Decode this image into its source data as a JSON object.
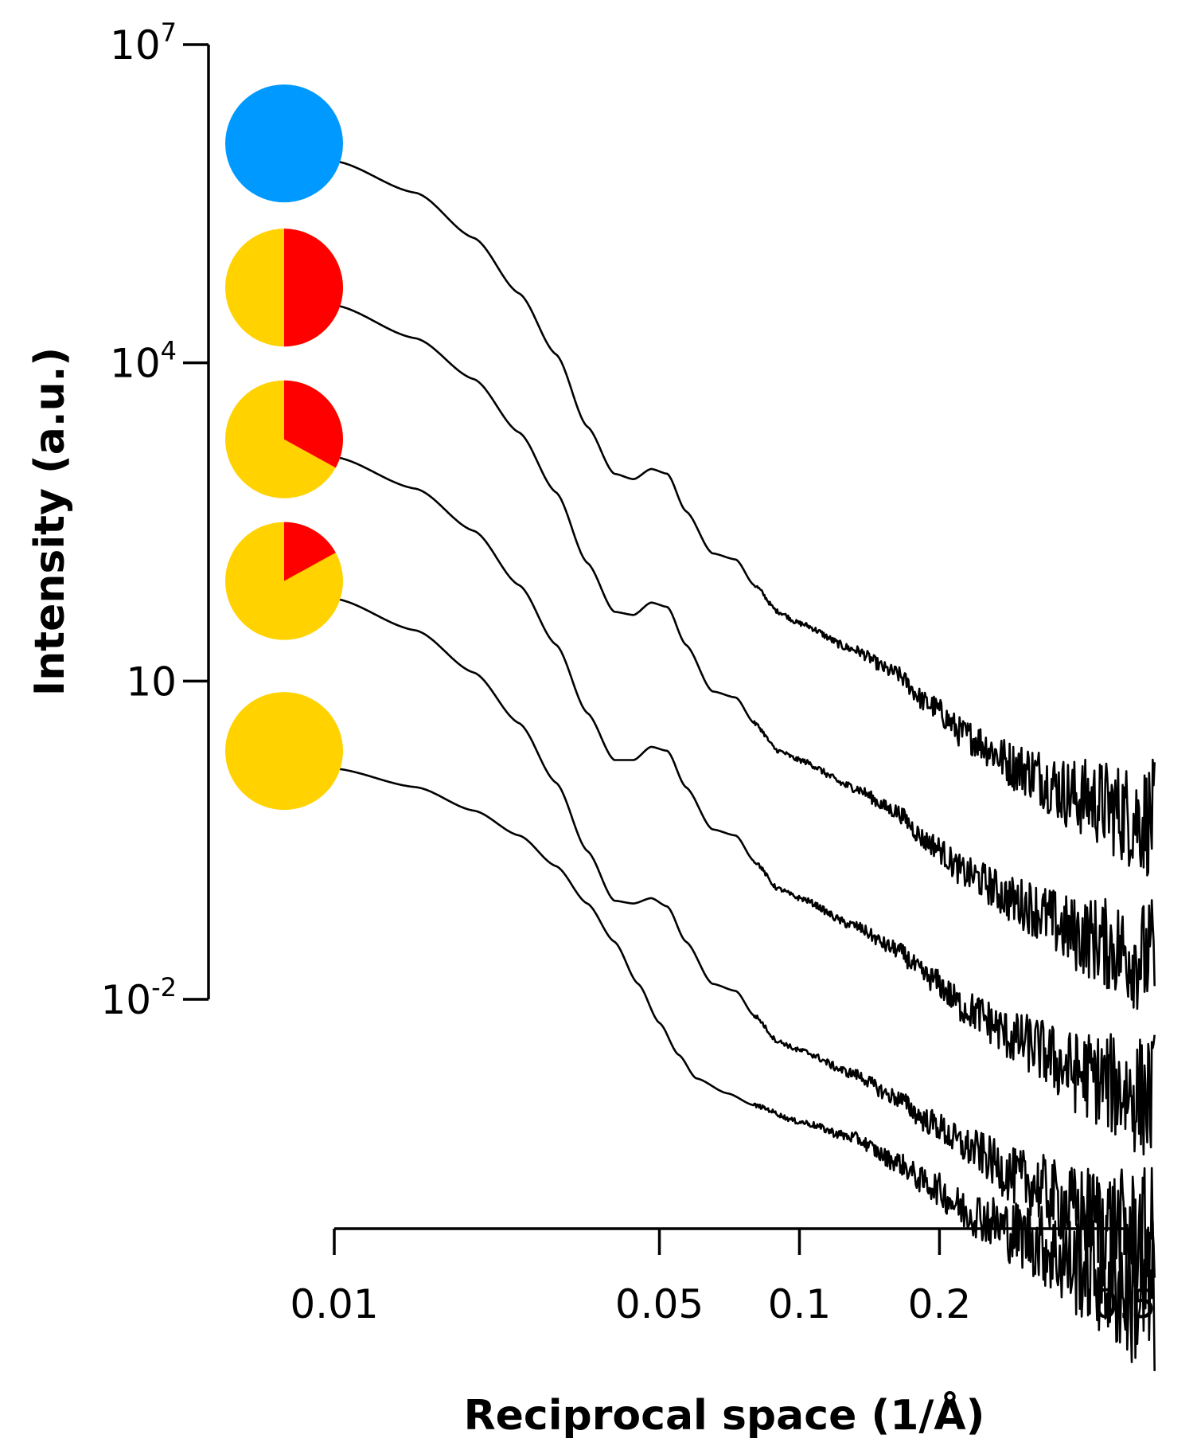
{
  "chart_data": {
    "type": "line",
    "xlabel": "Reciprocal space (1/Å)",
    "ylabel": "Intensity (a.u.)",
    "x_scale": "log",
    "y_scale": "log",
    "xlim": [
      0.0072,
      0.6
    ],
    "ylim": [
      1e-05,
      10000000
    ],
    "x_ticks": [
      {
        "value": 0.01,
        "label": "0.01"
      },
      {
        "value": 0.05,
        "label": "0.05"
      },
      {
        "value": 0.1,
        "label": "0.1"
      },
      {
        "value": 0.2,
        "label": "0.2"
      },
      {
        "value": 0.5,
        "label": "0.5"
      }
    ],
    "y_ticks": [
      {
        "value": 10000000,
        "base": "10",
        "exp": "7"
      },
      {
        "value": 10000,
        "base": "10",
        "exp": "4"
      },
      {
        "value": 10,
        "base": "10",
        "exp": ""
      },
      {
        "value": 0.01,
        "base": "10",
        "exp": "-2"
      }
    ],
    "series": [
      {
        "marker": {
          "red_fraction": 0,
          "colors": [
            "#0099ff"
          ]
        },
        "noise": 0.55,
        "points": [
          [
            0.01,
            800000
          ],
          [
            0.015,
            400000
          ],
          [
            0.02,
            150000
          ],
          [
            0.025,
            45000
          ],
          [
            0.03,
            12000
          ],
          [
            0.035,
            2500
          ],
          [
            0.04,
            900
          ],
          [
            0.044,
            800
          ],
          [
            0.048,
            1000
          ],
          [
            0.052,
            900
          ],
          [
            0.057,
            400
          ],
          [
            0.065,
            160
          ],
          [
            0.073,
            140
          ],
          [
            0.08,
            80
          ],
          [
            0.09,
            45
          ],
          [
            0.1,
            35
          ],
          [
            0.13,
            20
          ],
          [
            0.16,
            12
          ],
          [
            0.19,
            6
          ],
          [
            0.23,
            3
          ],
          [
            0.3,
            1.5
          ],
          [
            0.4,
            0.8
          ],
          [
            0.55,
            0.5
          ]
        ]
      },
      {
        "marker": {
          "red_fraction": 0.5,
          "colors": [
            "#ffd200",
            "#ff0000"
          ]
        },
        "noise": 0.55,
        "points": [
          [
            0.01,
            35000
          ],
          [
            0.015,
            17000
          ],
          [
            0.02,
            7000
          ],
          [
            0.025,
            2200
          ],
          [
            0.03,
            600
          ],
          [
            0.035,
            130
          ],
          [
            0.04,
            45
          ],
          [
            0.044,
            42
          ],
          [
            0.048,
            55
          ],
          [
            0.052,
            50
          ],
          [
            0.057,
            22
          ],
          [
            0.065,
            8
          ],
          [
            0.073,
            7
          ],
          [
            0.08,
            4
          ],
          [
            0.09,
            2.2
          ],
          [
            0.1,
            1.8
          ],
          [
            0.13,
            1
          ],
          [
            0.16,
            0.6
          ],
          [
            0.19,
            0.3
          ],
          [
            0.23,
            0.15
          ],
          [
            0.3,
            0.08
          ],
          [
            0.4,
            0.04
          ],
          [
            0.55,
            0.025
          ]
        ]
      },
      {
        "marker": {
          "red_fraction": 0.33,
          "colors": [
            "#ffd200",
            "#ff0000"
          ]
        },
        "noise": 0.6,
        "points": [
          [
            0.01,
            1300
          ],
          [
            0.015,
            650
          ],
          [
            0.02,
            260
          ],
          [
            0.025,
            80
          ],
          [
            0.03,
            22
          ],
          [
            0.035,
            5
          ],
          [
            0.04,
            1.8
          ],
          [
            0.044,
            1.8
          ],
          [
            0.048,
            2.4
          ],
          [
            0.052,
            2.2
          ],
          [
            0.057,
            1
          ],
          [
            0.065,
            0.4
          ],
          [
            0.073,
            0.35
          ],
          [
            0.08,
            0.2
          ],
          [
            0.09,
            0.11
          ],
          [
            0.1,
            0.09
          ],
          [
            0.13,
            0.05
          ],
          [
            0.16,
            0.03
          ],
          [
            0.19,
            0.016
          ],
          [
            0.23,
            0.008
          ],
          [
            0.3,
            0.004
          ],
          [
            0.4,
            0.002
          ],
          [
            0.55,
            0.0012
          ]
        ]
      },
      {
        "marker": {
          "red_fraction": 0.17,
          "colors": [
            "#ffd200",
            "#ff0000"
          ]
        },
        "noise": 0.65,
        "points": [
          [
            0.01,
            60
          ],
          [
            0.015,
            30
          ],
          [
            0.02,
            12
          ],
          [
            0.025,
            4
          ],
          [
            0.03,
            1.1
          ],
          [
            0.035,
            0.25
          ],
          [
            0.04,
            0.085
          ],
          [
            0.044,
            0.08
          ],
          [
            0.048,
            0.09
          ],
          [
            0.052,
            0.075
          ],
          [
            0.057,
            0.035
          ],
          [
            0.065,
            0.014
          ],
          [
            0.073,
            0.012
          ],
          [
            0.08,
            0.007
          ],
          [
            0.09,
            0.004
          ],
          [
            0.1,
            0.0033
          ],
          [
            0.13,
            0.002
          ],
          [
            0.16,
            0.0012
          ],
          [
            0.19,
            0.0007
          ],
          [
            0.23,
            0.0004
          ],
          [
            0.3,
            0.0002
          ],
          [
            0.4,
            0.0001
          ],
          [
            0.55,
            6e-05
          ]
        ]
      },
      {
        "marker": {
          "red_fraction": 0,
          "colors": [
            "#ffd200"
          ]
        },
        "noise": 0.75,
        "points": [
          [
            0.01,
            1.5
          ],
          [
            0.015,
            1
          ],
          [
            0.02,
            0.6
          ],
          [
            0.025,
            0.35
          ],
          [
            0.03,
            0.18
          ],
          [
            0.035,
            0.08
          ],
          [
            0.04,
            0.035
          ],
          [
            0.045,
            0.014
          ],
          [
            0.05,
            0.006
          ],
          [
            0.055,
            0.003
          ],
          [
            0.06,
            0.0018
          ],
          [
            0.07,
            0.0013
          ],
          [
            0.08,
            0.001
          ],
          [
            0.1,
            0.0007
          ],
          [
            0.13,
            0.0005
          ],
          [
            0.16,
            0.0003
          ],
          [
            0.19,
            0.00018
          ],
          [
            0.23,
            0.0001
          ],
          [
            0.3,
            6e-05
          ],
          [
            0.4,
            3e-05
          ],
          [
            0.55,
            1.5e-05
          ]
        ]
      }
    ]
  }
}
